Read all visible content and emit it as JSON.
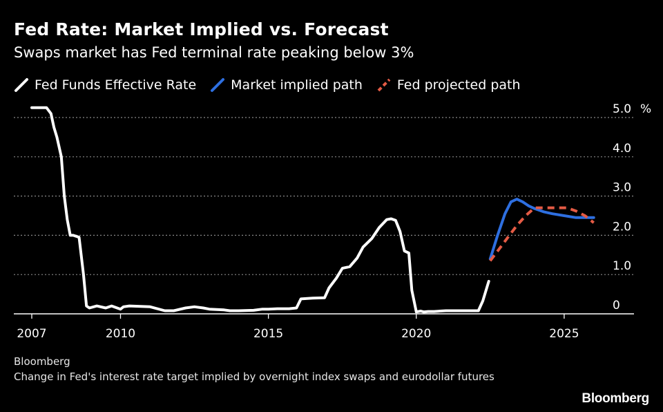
{
  "chart_data": {
    "type": "line",
    "title": "Fed Rate: Market Implied vs. Forecast",
    "subtitle": "Swaps market has Fed terminal rate peaking below 3%",
    "y_unit": "%",
    "ylim": [
      0,
      5.0
    ],
    "xlim": [
      2007.0,
      2026.1
    ],
    "y_ticks": [
      {
        "value": 5.0,
        "label": "5.0"
      },
      {
        "value": 4.0,
        "label": "4.0"
      },
      {
        "value": 3.0,
        "label": "3.0"
      },
      {
        "value": 2.0,
        "label": "2.0"
      },
      {
        "value": 1.0,
        "label": "1.0"
      },
      {
        "value": 0,
        "label": "0"
      }
    ],
    "x_ticks": [
      {
        "value": 2007,
        "label": "2007"
      },
      {
        "value": 2010,
        "label": "2010"
      },
      {
        "value": 2015,
        "label": "2015"
      },
      {
        "value": 2020,
        "label": "2020"
      },
      {
        "value": 2025,
        "label": "2025"
      }
    ],
    "grid": "horizontal dotted",
    "legend_position": "top-left",
    "series": [
      {
        "name": "Fed Funds Effective Rate",
        "color": "#ffffff",
        "dash": "solid",
        "x": [
          2007.0,
          2007.5,
          2007.65,
          2007.75,
          2007.85,
          2008.0,
          2008.1,
          2008.2,
          2008.3,
          2008.4,
          2008.6,
          2008.75,
          2008.85,
          2008.95,
          2009.2,
          2009.5,
          2009.7,
          2010.0,
          2010.1,
          2010.3,
          2011.0,
          2011.5,
          2011.8,
          2012.2,
          2012.5,
          2012.8,
          2013.0,
          2013.5,
          2013.7,
          2014.0,
          2014.5,
          2014.8,
          2015.0,
          2015.3,
          2015.7,
          2015.95,
          2016.1,
          2016.5,
          2016.9,
          2017.05,
          2017.3,
          2017.5,
          2017.75,
          2018.0,
          2018.2,
          2018.5,
          2018.75,
          2019.0,
          2019.15,
          2019.3,
          2019.45,
          2019.6,
          2019.75,
          2019.85,
          2020.0,
          2020.15,
          2020.25,
          2020.4,
          2020.6,
          2021.0,
          2021.5,
          2021.8,
          2022.1,
          2022.25,
          2022.45
        ],
        "values": [
          5.25,
          5.25,
          5.1,
          4.75,
          4.5,
          4.0,
          3.0,
          2.4,
          2.0,
          2.0,
          1.95,
          1.0,
          0.2,
          0.15,
          0.2,
          0.15,
          0.2,
          0.12,
          0.18,
          0.2,
          0.18,
          0.08,
          0.08,
          0.15,
          0.18,
          0.15,
          0.12,
          0.1,
          0.08,
          0.08,
          0.09,
          0.12,
          0.12,
          0.13,
          0.13,
          0.15,
          0.38,
          0.4,
          0.41,
          0.66,
          0.91,
          1.16,
          1.2,
          1.42,
          1.7,
          1.92,
          2.2,
          2.4,
          2.42,
          2.38,
          2.1,
          1.6,
          1.55,
          0.6,
          0.05,
          0.07,
          0.05,
          0.06,
          0.06,
          0.08,
          0.08,
          0.08,
          0.08,
          0.33,
          0.83
        ]
      },
      {
        "name": "Market implied path",
        "color": "#2e6fe0",
        "dash": "solid",
        "x": [
          2022.5,
          2022.75,
          2023.0,
          2023.2,
          2023.4,
          2023.6,
          2023.8,
          2024.0,
          2024.3,
          2024.6,
          2025.0,
          2025.4,
          2025.8,
          2026.0
        ],
        "values": [
          1.4,
          2.0,
          2.55,
          2.85,
          2.92,
          2.85,
          2.75,
          2.68,
          2.6,
          2.55,
          2.5,
          2.45,
          2.45,
          2.45
        ]
      },
      {
        "name": "Fed projected path",
        "color": "#e45b45",
        "dash": "dashed",
        "x": [
          2022.5,
          2022.8,
          2023.1,
          2023.4,
          2023.7,
          2024.0,
          2024.3,
          2024.6,
          2024.9,
          2025.1,
          2025.4,
          2025.7,
          2026.0
        ],
        "values": [
          1.35,
          1.65,
          1.95,
          2.25,
          2.5,
          2.7,
          2.7,
          2.7,
          2.7,
          2.7,
          2.62,
          2.5,
          2.32
        ]
      }
    ]
  },
  "footer": {
    "source": "Bloomberg",
    "note": "Change in Fed's interest rate target implied by overnight index swaps and eurodollar futures",
    "brand": "Bloomberg"
  }
}
